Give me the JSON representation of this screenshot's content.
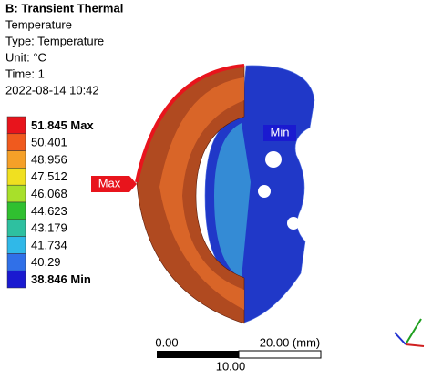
{
  "header": {
    "title": "B: Transient Thermal",
    "lines": [
      "Temperature",
      "Type: Temperature",
      "Unit: °C",
      "Time: 1",
      "2022-08-14 10:42"
    ]
  },
  "legend": {
    "entries": [
      {
        "label": "51.845 Max",
        "color": "#e8141c"
      },
      {
        "label": "50.401",
        "color": "#f05a1e"
      },
      {
        "label": "48.956",
        "color": "#f5a028"
      },
      {
        "label": "47.512",
        "color": "#f0e020"
      },
      {
        "label": "46.068",
        "color": "#a8e02a"
      },
      {
        "label": "44.623",
        "color": "#30c030"
      },
      {
        "label": "43.179",
        "color": "#2ec0a0"
      },
      {
        "label": "41.734",
        "color": "#30b8e8"
      },
      {
        "label": "40.29",
        "color": "#3070e8"
      },
      {
        "label": "38.846 Min",
        "color": "#1a1ad0"
      }
    ]
  },
  "probes": {
    "min": "Min",
    "max": "Max"
  },
  "scale_bar": {
    "start": "0.00",
    "end": "20.00 (mm)",
    "middle": "10.00"
  }
}
